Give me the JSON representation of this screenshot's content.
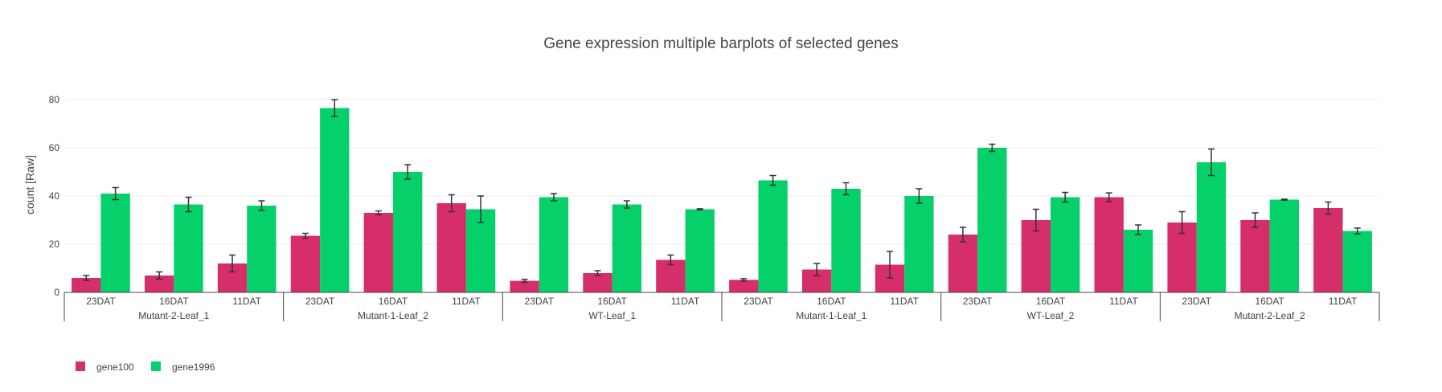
{
  "chart_data": {
    "type": "bar",
    "title": "Gene expression multiple barplots of selected genes",
    "xlabel": "",
    "ylabel": "count [Raw]",
    "ylim": [
      0,
      88
    ],
    "yticks": [
      0,
      20,
      40,
      60,
      80
    ],
    "grid": true,
    "legend_position": "bottom-left",
    "groups": [
      "Mutant-2-Leaf_1",
      "Mutant-1-Leaf_2",
      "WT-Leaf_1",
      "Mutant-1-Leaf_1",
      "WT-Leaf_2",
      "Mutant-2-Leaf_2"
    ],
    "subcategories": [
      "23DAT",
      "16DAT",
      "11DAT"
    ],
    "series": [
      {
        "name": "gene100",
        "color": "#d62d6b",
        "values": [
          6,
          7,
          12,
          23.5,
          33,
          37,
          4.8,
          8,
          13.5,
          5.2,
          9.5,
          11.5,
          24,
          30,
          39.5,
          29,
          30,
          35
        ],
        "errors": [
          1,
          1.5,
          3.5,
          1,
          0.8,
          3.5,
          0.6,
          1,
          2,
          0.5,
          2.5,
          5.5,
          3,
          4.5,
          1.8,
          4.5,
          3,
          2.5
        ]
      },
      {
        "name": "gene1996",
        "color": "#05d06a",
        "values": [
          41,
          36.5,
          36,
          76.5,
          50,
          34.5,
          39.5,
          36.5,
          34.5,
          46.5,
          43,
          40,
          60,
          39.5,
          26,
          54,
          38.5,
          25.5
        ],
        "errors": [
          2.5,
          3,
          2,
          3.5,
          3,
          5.5,
          1.5,
          1.5,
          0.2,
          2,
          2.5,
          3,
          1.5,
          2,
          2,
          5.5,
          0.2,
          1.2
        ]
      }
    ]
  }
}
